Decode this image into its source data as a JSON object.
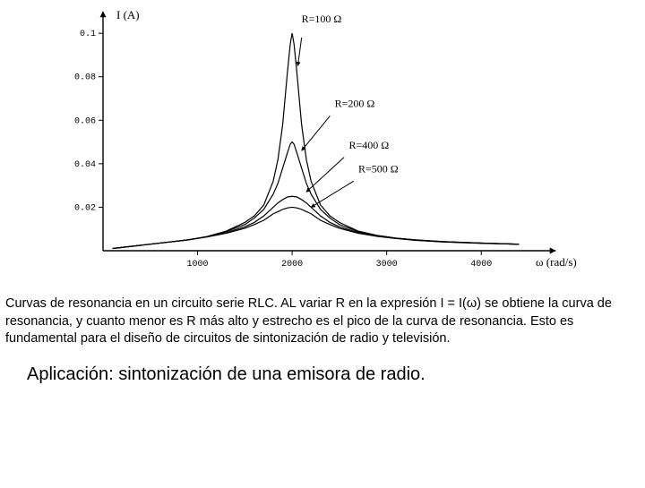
{
  "chart": {
    "type": "line",
    "y_axis_label": "I (A)",
    "x_axis_label": "ω (rad/s)",
    "xlim": [
      0,
      4500
    ],
    "ylim": [
      0,
      0.105
    ],
    "xtick_step": 1000,
    "xticks": [
      1000,
      2000,
      3000,
      4000
    ],
    "yticks": [
      "0.02",
      "0.04",
      "0.06",
      "0.08",
      "0.1"
    ],
    "curve_color": "#000000",
    "axis_color": "#000000",
    "background_color": "#ffffff",
    "label_fontsize": 13,
    "tick_fontsize": 10,
    "annotation_fontsize": 12,
    "line_width": 1.2,
    "series": [
      {
        "label": "R=100 Ω",
        "annotation_pos": {
          "x": 2100,
          "y": 0.105
        },
        "arrow_from": {
          "x": 2100,
          "y": 0.098
        },
        "arrow_to": {
          "x": 2060,
          "y": 0.085
        },
        "points": [
          [
            100,
            0.001
          ],
          [
            300,
            0.002
          ],
          [
            500,
            0.003
          ],
          [
            700,
            0.004
          ],
          [
            900,
            0.005
          ],
          [
            1100,
            0.0065
          ],
          [
            1300,
            0.009
          ],
          [
            1500,
            0.013
          ],
          [
            1600,
            0.016
          ],
          [
            1700,
            0.021
          ],
          [
            1800,
            0.032
          ],
          [
            1850,
            0.042
          ],
          [
            1900,
            0.058
          ],
          [
            1950,
            0.082
          ],
          [
            1980,
            0.095
          ],
          [
            2000,
            0.1
          ],
          [
            2020,
            0.095
          ],
          [
            2050,
            0.082
          ],
          [
            2100,
            0.058
          ],
          [
            2150,
            0.042
          ],
          [
            2200,
            0.032
          ],
          [
            2300,
            0.021
          ],
          [
            2400,
            0.016
          ],
          [
            2500,
            0.013
          ],
          [
            2700,
            0.009
          ],
          [
            2900,
            0.007
          ],
          [
            3100,
            0.0058
          ],
          [
            3300,
            0.005
          ],
          [
            3600,
            0.0042
          ],
          [
            4000,
            0.0035
          ],
          [
            4400,
            0.003
          ]
        ]
      },
      {
        "label": "R=200 Ω",
        "annotation_pos": {
          "x": 2450,
          "y": 0.066
        },
        "arrow_from": {
          "x": 2400,
          "y": 0.062
        },
        "arrow_to": {
          "x": 2100,
          "y": 0.046
        },
        "points": [
          [
            100,
            0.001
          ],
          [
            300,
            0.002
          ],
          [
            500,
            0.003
          ],
          [
            700,
            0.004
          ],
          [
            900,
            0.005
          ],
          [
            1100,
            0.0065
          ],
          [
            1300,
            0.0088
          ],
          [
            1500,
            0.012
          ],
          [
            1600,
            0.015
          ],
          [
            1700,
            0.019
          ],
          [
            1800,
            0.026
          ],
          [
            1850,
            0.031
          ],
          [
            1900,
            0.038
          ],
          [
            1950,
            0.045
          ],
          [
            1980,
            0.049
          ],
          [
            2000,
            0.05
          ],
          [
            2020,
            0.049
          ],
          [
            2050,
            0.045
          ],
          [
            2100,
            0.038
          ],
          [
            2150,
            0.031
          ],
          [
            2200,
            0.026
          ],
          [
            2300,
            0.019
          ],
          [
            2400,
            0.015
          ],
          [
            2500,
            0.012
          ],
          [
            2700,
            0.0088
          ],
          [
            2900,
            0.007
          ],
          [
            3100,
            0.0058
          ],
          [
            3300,
            0.005
          ],
          [
            3600,
            0.0042
          ],
          [
            4000,
            0.0035
          ],
          [
            4400,
            0.003
          ]
        ]
      },
      {
        "label": "R=400 Ω",
        "annotation_pos": {
          "x": 2600,
          "y": 0.047
        },
        "arrow_from": {
          "x": 2550,
          "y": 0.043
        },
        "arrow_to": {
          "x": 2150,
          "y": 0.027
        },
        "points": [
          [
            100,
            0.001
          ],
          [
            300,
            0.002
          ],
          [
            500,
            0.003
          ],
          [
            700,
            0.004
          ],
          [
            900,
            0.005
          ],
          [
            1100,
            0.0064
          ],
          [
            1300,
            0.0083
          ],
          [
            1500,
            0.011
          ],
          [
            1600,
            0.013
          ],
          [
            1700,
            0.016
          ],
          [
            1800,
            0.02
          ],
          [
            1850,
            0.022
          ],
          [
            1900,
            0.0235
          ],
          [
            1950,
            0.0247
          ],
          [
            2000,
            0.025
          ],
          [
            2050,
            0.0247
          ],
          [
            2100,
            0.0235
          ],
          [
            2150,
            0.022
          ],
          [
            2200,
            0.02
          ],
          [
            2300,
            0.016
          ],
          [
            2400,
            0.013
          ],
          [
            2500,
            0.011
          ],
          [
            2700,
            0.0083
          ],
          [
            2900,
            0.0068
          ],
          [
            3100,
            0.0057
          ],
          [
            3300,
            0.0049
          ],
          [
            3600,
            0.0041
          ],
          [
            4000,
            0.0035
          ],
          [
            4400,
            0.003
          ]
        ]
      },
      {
        "label": "R=500 Ω",
        "annotation_pos": {
          "x": 2700,
          "y": 0.036
        },
        "arrow_from": {
          "x": 2650,
          "y": 0.032
        },
        "arrow_to": {
          "x": 2200,
          "y": 0.02
        },
        "points": [
          [
            100,
            0.001
          ],
          [
            300,
            0.002
          ],
          [
            500,
            0.003
          ],
          [
            700,
            0.004
          ],
          [
            900,
            0.005
          ],
          [
            1100,
            0.0063
          ],
          [
            1300,
            0.008
          ],
          [
            1500,
            0.0103
          ],
          [
            1600,
            0.012
          ],
          [
            1700,
            0.014
          ],
          [
            1800,
            0.017
          ],
          [
            1850,
            0.018
          ],
          [
            1900,
            0.019
          ],
          [
            1950,
            0.0197
          ],
          [
            2000,
            0.02
          ],
          [
            2050,
            0.0197
          ],
          [
            2100,
            0.019
          ],
          [
            2150,
            0.018
          ],
          [
            2200,
            0.017
          ],
          [
            2300,
            0.014
          ],
          [
            2400,
            0.012
          ],
          [
            2500,
            0.0103
          ],
          [
            2700,
            0.008
          ],
          [
            2900,
            0.0066
          ],
          [
            3100,
            0.0056
          ],
          [
            3300,
            0.0048
          ],
          [
            3600,
            0.004
          ],
          [
            4000,
            0.0034
          ],
          [
            4400,
            0.003
          ]
        ]
      }
    ]
  },
  "caption_text": "Curvas de resonancia en un circuito serie RLC. AL variar R en la expresión I = I(ω) se  obtiene la curva de resonancia, y cuanto menor es R más alto y estrecho es el pico de la curva de resonancia. Esto es fundamental para el diseño de circuitos de sintonización de radio y televisión.",
  "application_text": "Aplicación: sintonización de una emisora de radio."
}
